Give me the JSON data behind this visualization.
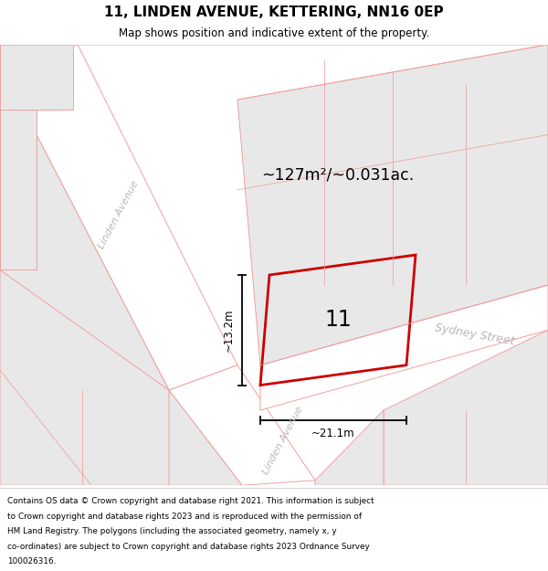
{
  "title": "11, LINDEN AVENUE, KETTERING, NN16 0EP",
  "subtitle": "Map shows position and indicative extent of the property.",
  "footer_lines": [
    "Contains OS data © Crown copyright and database right 2021. This information is subject",
    "to Crown copyright and database rights 2023 and is reproduced with the permission of",
    "HM Land Registry. The polygons (including the associated geometry, namely x, y",
    "co-ordinates) are subject to Crown copyright and database rights 2023 Ordnance Survey",
    "100026316."
  ],
  "block_color": "#e8e8e8",
  "block_border": "#f0a0a0",
  "road_color": "#ffffff",
  "road_border": "#f0a0a0",
  "plot_border": "#cc0000",
  "street_color": "#b8b8b8",
  "dim_color": "#000000",
  "area_text": "~127m²/~0.031ac.",
  "plot_label": "11",
  "dim_width": "~21.1m",
  "dim_height": "~13.2m",
  "street_linden_top": "Linden Avenue",
  "street_linden_bot": "Linden Avenue",
  "street_sydney": "Sydney Street",
  "lw_block": 0.7,
  "lw_plot": 2.0
}
